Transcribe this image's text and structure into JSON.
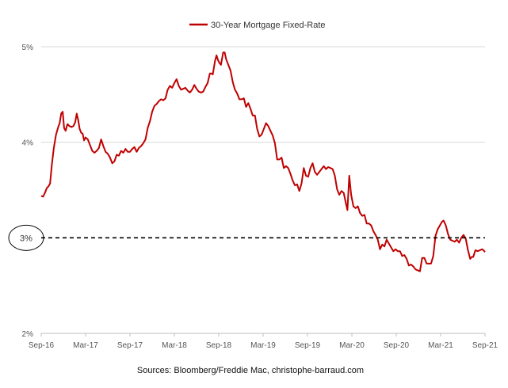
{
  "chart_data": {
    "type": "line",
    "title": "",
    "xlabel": "",
    "ylabel": "",
    "legend": {
      "position": "top-center",
      "entries": [
        "30-Year Mortgage Fixed-Rate"
      ]
    },
    "ylim": [
      2,
      5
    ],
    "y_ticks": [
      {
        "value": 5,
        "label": "5%"
      },
      {
        "value": 4,
        "label": "4%"
      },
      {
        "value": 3,
        "label": "3%"
      },
      {
        "value": 2,
        "label": "2%"
      }
    ],
    "x_domain": [
      0,
      60
    ],
    "x_ticks": [
      {
        "value": 0,
        "label": "Sep-16"
      },
      {
        "value": 6,
        "label": "Mar-17"
      },
      {
        "value": 12,
        "label": "Sep-17"
      },
      {
        "value": 18,
        "label": "Mar-18"
      },
      {
        "value": 24,
        "label": "Sep-18"
      },
      {
        "value": 30,
        "label": "Mar-19"
      },
      {
        "value": 36,
        "label": "Sep-19"
      },
      {
        "value": 42,
        "label": "Mar-20"
      },
      {
        "value": 48,
        "label": "Sep-20"
      },
      {
        "value": 54,
        "label": "Mar-21"
      },
      {
        "value": 60,
        "label": "Sep-21"
      }
    ],
    "reference_line": {
      "value": 3,
      "label": "3%",
      "style": "dashed",
      "circled_label": true
    },
    "grid": "horizontal",
    "series": [
      {
        "name": "30-Year Mortgage Fixed-Rate",
        "color": "#c00000",
        "points": [
          [
            0.0,
            3.44
          ],
          [
            0.25,
            3.43
          ],
          [
            0.5,
            3.47
          ],
          [
            0.75,
            3.52
          ],
          [
            1.0,
            3.54
          ],
          [
            1.2,
            3.57
          ],
          [
            1.45,
            3.77
          ],
          [
            1.7,
            3.94
          ],
          [
            2.0,
            4.08
          ],
          [
            2.3,
            4.16
          ],
          [
            2.5,
            4.2
          ],
          [
            2.7,
            4.3
          ],
          [
            2.9,
            4.32
          ],
          [
            3.1,
            4.15
          ],
          [
            3.3,
            4.12
          ],
          [
            3.55,
            4.19
          ],
          [
            3.8,
            4.17
          ],
          [
            4.1,
            4.16
          ],
          [
            4.35,
            4.17
          ],
          [
            4.6,
            4.21
          ],
          [
            4.8,
            4.3
          ],
          [
            5.0,
            4.23
          ],
          [
            5.2,
            4.14
          ],
          [
            5.4,
            4.1
          ],
          [
            5.6,
            4.09
          ],
          [
            5.8,
            4.02
          ],
          [
            6.0,
            4.05
          ],
          [
            6.3,
            4.03
          ],
          [
            6.6,
            3.97
          ],
          [
            6.9,
            3.91
          ],
          [
            7.2,
            3.89
          ],
          [
            7.5,
            3.91
          ],
          [
            7.8,
            3.94
          ],
          [
            8.1,
            4.03
          ],
          [
            8.4,
            3.96
          ],
          [
            8.7,
            3.9
          ],
          [
            9.0,
            3.88
          ],
          [
            9.3,
            3.84
          ],
          [
            9.6,
            3.78
          ],
          [
            9.9,
            3.8
          ],
          [
            10.2,
            3.87
          ],
          [
            10.5,
            3.86
          ],
          [
            10.8,
            3.91
          ],
          [
            11.1,
            3.89
          ],
          [
            11.4,
            3.93
          ],
          [
            11.7,
            3.9
          ],
          [
            12.0,
            3.9
          ],
          [
            12.3,
            3.93
          ],
          [
            12.6,
            3.95
          ],
          [
            12.9,
            3.9
          ],
          [
            13.2,
            3.94
          ],
          [
            13.5,
            3.96
          ],
          [
            13.8,
            3.99
          ],
          [
            14.1,
            4.03
          ],
          [
            14.4,
            4.15
          ],
          [
            14.7,
            4.22
          ],
          [
            15.0,
            4.32
          ],
          [
            15.3,
            4.38
          ],
          [
            15.6,
            4.4
          ],
          [
            15.9,
            4.43
          ],
          [
            16.2,
            4.45
          ],
          [
            16.5,
            4.44
          ],
          [
            16.8,
            4.46
          ],
          [
            17.1,
            4.55
          ],
          [
            17.4,
            4.59
          ],
          [
            17.7,
            4.57
          ],
          [
            18.0,
            4.62
          ],
          [
            18.3,
            4.66
          ],
          [
            18.6,
            4.59
          ],
          [
            18.9,
            4.55
          ],
          [
            19.2,
            4.56
          ],
          [
            19.5,
            4.57
          ],
          [
            19.8,
            4.54
          ],
          [
            20.1,
            4.52
          ],
          [
            20.4,
            4.55
          ],
          [
            20.7,
            4.6
          ],
          [
            21.0,
            4.56
          ],
          [
            21.3,
            4.53
          ],
          [
            21.6,
            4.52
          ],
          [
            21.9,
            4.53
          ],
          [
            22.2,
            4.58
          ],
          [
            22.5,
            4.62
          ],
          [
            22.8,
            4.72
          ],
          [
            23.0,
            4.72
          ],
          [
            23.2,
            4.71
          ],
          [
            23.5,
            4.85
          ],
          [
            23.7,
            4.91
          ],
          [
            23.9,
            4.86
          ],
          [
            24.1,
            4.83
          ],
          [
            24.3,
            4.81
          ],
          [
            24.6,
            4.94
          ],
          [
            24.8,
            4.94
          ],
          [
            25.0,
            4.87
          ],
          [
            25.3,
            4.81
          ],
          [
            25.6,
            4.75
          ],
          [
            25.9,
            4.63
          ],
          [
            26.2,
            4.55
          ],
          [
            26.5,
            4.51
          ],
          [
            26.8,
            4.45
          ],
          [
            27.1,
            4.45
          ],
          [
            27.4,
            4.46
          ],
          [
            27.7,
            4.37
          ],
          [
            28.0,
            4.41
          ],
          [
            28.3,
            4.35
          ],
          [
            28.6,
            4.28
          ],
          [
            28.9,
            4.28
          ],
          [
            29.2,
            4.14
          ],
          [
            29.5,
            4.06
          ],
          [
            29.8,
            4.08
          ],
          [
            30.1,
            4.14
          ],
          [
            30.4,
            4.2
          ],
          [
            30.7,
            4.17
          ],
          [
            31.0,
            4.12
          ],
          [
            31.3,
            4.07
          ],
          [
            31.6,
            3.99
          ],
          [
            31.9,
            3.82
          ],
          [
            32.2,
            3.82
          ],
          [
            32.5,
            3.84
          ],
          [
            32.8,
            3.73
          ],
          [
            33.1,
            3.75
          ],
          [
            33.4,
            3.73
          ],
          [
            33.7,
            3.67
          ],
          [
            34.0,
            3.6
          ],
          [
            34.3,
            3.55
          ],
          [
            34.6,
            3.56
          ],
          [
            34.9,
            3.49
          ],
          [
            35.2,
            3.57
          ],
          [
            35.5,
            3.73
          ],
          [
            35.8,
            3.65
          ],
          [
            36.1,
            3.64
          ],
          [
            36.4,
            3.73
          ],
          [
            36.7,
            3.78
          ],
          [
            37.0,
            3.69
          ],
          [
            37.3,
            3.66
          ],
          [
            37.6,
            3.69
          ],
          [
            37.9,
            3.72
          ],
          [
            38.2,
            3.75
          ],
          [
            38.5,
            3.72
          ],
          [
            38.8,
            3.74
          ],
          [
            39.1,
            3.73
          ],
          [
            39.4,
            3.72
          ],
          [
            39.7,
            3.65
          ],
          [
            40.0,
            3.51
          ],
          [
            40.3,
            3.45
          ],
          [
            40.6,
            3.49
          ],
          [
            40.9,
            3.47
          ],
          [
            41.2,
            3.36
          ],
          [
            41.4,
            3.29
          ],
          [
            41.65,
            3.65
          ],
          [
            41.9,
            3.45
          ],
          [
            42.2,
            3.33
          ],
          [
            42.5,
            3.31
          ],
          [
            42.8,
            3.33
          ],
          [
            43.1,
            3.26
          ],
          [
            43.4,
            3.23
          ],
          [
            43.7,
            3.24
          ],
          [
            44.0,
            3.15
          ],
          [
            44.3,
            3.15
          ],
          [
            44.6,
            3.13
          ],
          [
            44.9,
            3.07
          ],
          [
            45.2,
            3.03
          ],
          [
            45.5,
            2.98
          ],
          [
            45.8,
            2.88
          ],
          [
            46.1,
            2.93
          ],
          [
            46.4,
            2.91
          ],
          [
            46.7,
            2.98
          ],
          [
            47.0,
            2.94
          ],
          [
            47.3,
            2.9
          ],
          [
            47.6,
            2.86
          ],
          [
            47.9,
            2.88
          ],
          [
            48.2,
            2.86
          ],
          [
            48.5,
            2.86
          ],
          [
            48.8,
            2.81
          ],
          [
            49.1,
            2.82
          ],
          [
            49.4,
            2.78
          ],
          [
            49.7,
            2.71
          ],
          [
            50.0,
            2.72
          ],
          [
            50.3,
            2.7
          ],
          [
            50.6,
            2.67
          ],
          [
            50.9,
            2.66
          ],
          [
            51.2,
            2.65
          ],
          [
            51.5,
            2.79
          ],
          [
            51.8,
            2.79
          ],
          [
            52.1,
            2.73
          ],
          [
            52.4,
            2.73
          ],
          [
            52.7,
            2.73
          ],
          [
            53.0,
            2.81
          ],
          [
            53.3,
            3.02
          ],
          [
            53.6,
            3.09
          ],
          [
            53.9,
            3.13
          ],
          [
            54.2,
            3.17
          ],
          [
            54.4,
            3.18
          ],
          [
            54.7,
            3.13
          ],
          [
            55.0,
            3.04
          ],
          [
            55.3,
            2.98
          ],
          [
            55.6,
            2.97
          ],
          [
            55.9,
            2.96
          ],
          [
            56.2,
            2.98
          ],
          [
            56.5,
            2.95
          ],
          [
            56.8,
            3.0
          ],
          [
            57.1,
            3.03
          ],
          [
            57.4,
            2.99
          ],
          [
            57.7,
            2.87
          ],
          [
            58.0,
            2.78
          ],
          [
            58.2,
            2.8
          ],
          [
            58.4,
            2.8
          ],
          [
            58.7,
            2.87
          ],
          [
            59.0,
            2.86
          ],
          [
            59.3,
            2.87
          ],
          [
            59.6,
            2.88
          ],
          [
            59.8,
            2.87
          ],
          [
            60.0,
            2.85
          ]
        ]
      }
    ]
  },
  "source_text": "Sources: Bloomberg/Freddie Mac, christophe-barraud.com"
}
